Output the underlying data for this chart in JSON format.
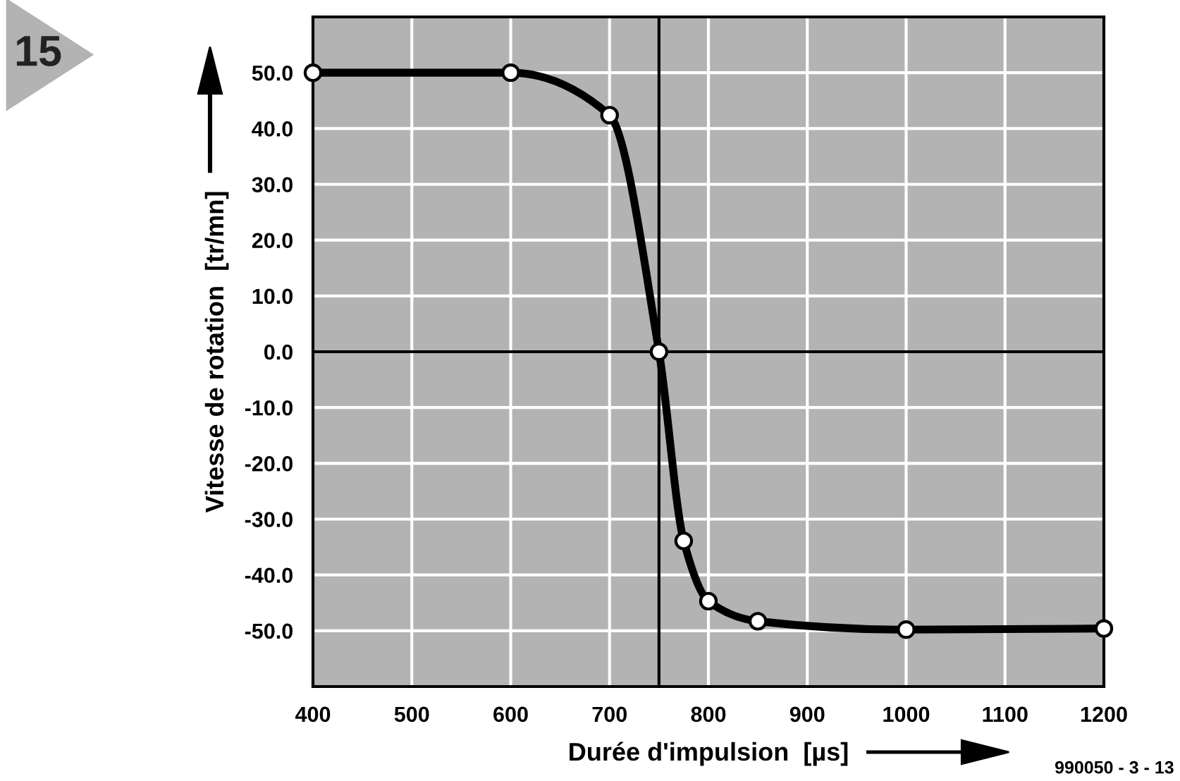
{
  "chart_data": {
    "type": "line",
    "xlabel": "Durée d'impulsion  [µs]",
    "ylabel": "Vitesse de rotation  [tr/mn]",
    "x": [
      400,
      600,
      700,
      750,
      775,
      800,
      850,
      1000,
      1200
    ],
    "series": [
      {
        "color": "#000000",
        "values": [
          50.0,
          50.0,
          42.4,
          0.0,
          -33.9,
          -44.7,
          -48.3,
          -49.8,
          -49.6
        ]
      }
    ],
    "xlim": [
      400,
      1200
    ],
    "xticks": [
      400,
      500,
      600,
      700,
      800,
      900,
      1000,
      1100,
      1200
    ],
    "ylim": [
      -60,
      60
    ],
    "yticks": [
      {
        "value": -50,
        "label": "-50.0"
      },
      {
        "value": -40,
        "label": "-40.0"
      },
      {
        "value": -30,
        "label": "-30.0"
      },
      {
        "value": -20,
        "label": "-20.0"
      },
      {
        "value": -10,
        "label": "-10.0"
      },
      {
        "value": 0,
        "label": "0.0"
      },
      {
        "value": 10,
        "label": "10.0"
      },
      {
        "value": 20,
        "label": "20.0"
      },
      {
        "value": 30,
        "label": "30.0"
      },
      {
        "value": 40,
        "label": "40.0"
      },
      {
        "value": 50,
        "label": "50.0"
      }
    ],
    "ref_lines": [
      {
        "axis": "x",
        "value": 750,
        "color": "#000000"
      },
      {
        "axis": "y",
        "value": 0,
        "color": "#000000"
      }
    ],
    "grid": true,
    "marker": "circle",
    "line_style": "solid",
    "annotations": [
      "15",
      "990050 - 3 - 13"
    ]
  }
}
